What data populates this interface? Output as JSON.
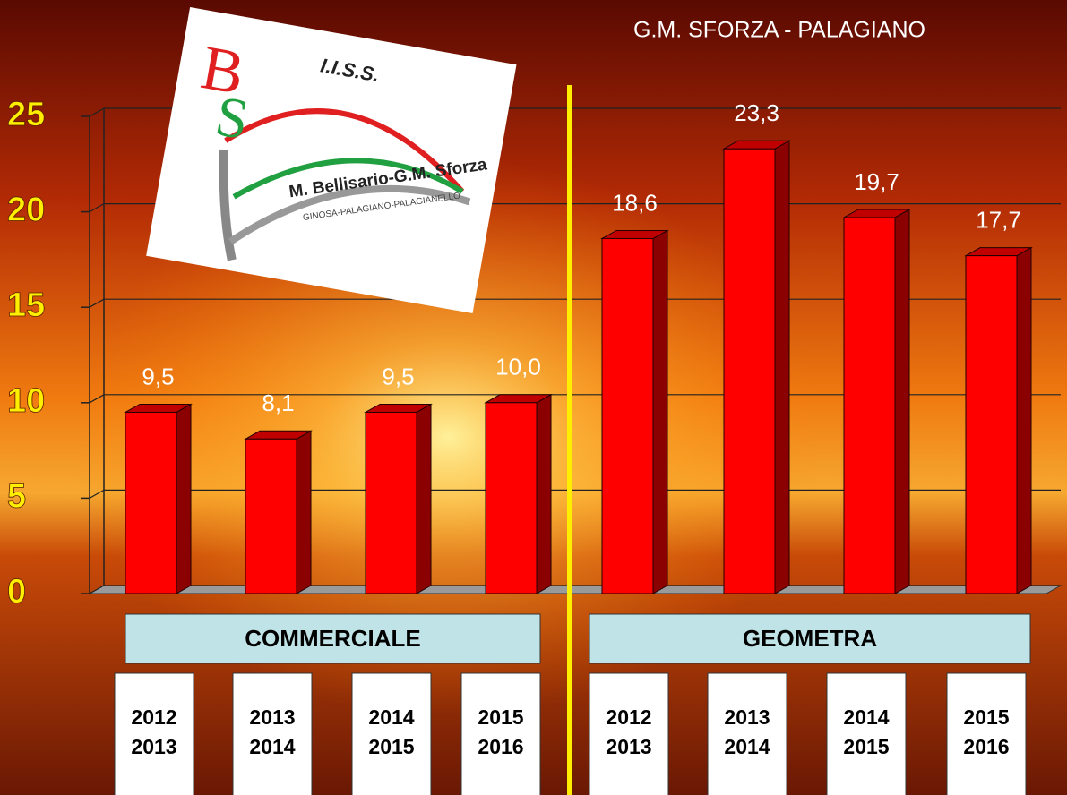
{
  "chart_data": {
    "type": "bar3d",
    "title": "G.M. SFORZA - PALAGIANO",
    "logo": {
      "initials": [
        "B",
        "S"
      ],
      "top": "I.I.S.S.",
      "name": "M. Bellisario-G.M. Sforza",
      "towns": "GINOSA-PALAGIANO-PALAGIANELLO"
    },
    "groups": [
      "COMMERCIALE",
      "GEOMETRA"
    ],
    "categories": [
      [
        "2012",
        "2013"
      ],
      [
        "2013",
        "2014"
      ],
      [
        "2014",
        "2015"
      ],
      [
        "2015",
        "2016"
      ],
      [
        "2012",
        "2013"
      ],
      [
        "2013",
        "2014"
      ],
      [
        "2014",
        "2015"
      ],
      [
        "2015",
        "2016"
      ]
    ],
    "values": [
      9.5,
      8.1,
      9.5,
      10.0,
      18.6,
      23.3,
      19.7,
      17.7
    ],
    "value_labels": [
      "9,5",
      "8,1",
      "9,5",
      "10,0",
      "18,6",
      "23,3",
      "19,7",
      "17,7"
    ],
    "color": "#ff0000",
    "ylim": [
      0,
      25
    ],
    "yticks": [
      0,
      5,
      10,
      15,
      20,
      25
    ],
    "grid": true
  }
}
